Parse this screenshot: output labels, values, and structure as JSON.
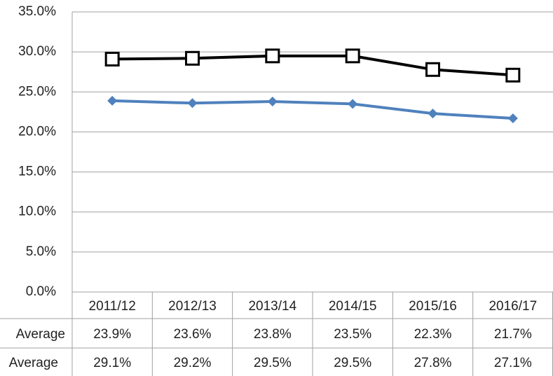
{
  "chart_data": {
    "type": "line",
    "categories": [
      "2011/12",
      "2012/13",
      "2013/14",
      "2014/15",
      "2015/16",
      "2016/17"
    ],
    "series": [
      {
        "name": "Average",
        "color": "#4f81bd",
        "marker": "diamond",
        "values": [
          23.9,
          23.6,
          23.8,
          23.5,
          22.3,
          21.7
        ],
        "value_labels": [
          "23.9%",
          "23.6%",
          "23.8%",
          "23.5%",
          "22.3%",
          "21.7%"
        ]
      },
      {
        "name": "Average",
        "color": "#000000",
        "marker": "square",
        "values": [
          29.1,
          29.2,
          29.5,
          29.5,
          27.8,
          27.1
        ],
        "value_labels": [
          "29.1%",
          "29.2%",
          "29.5%",
          "29.5%",
          "27.8%",
          "27.1%"
        ]
      }
    ],
    "ylim": [
      0,
      35
    ],
    "yticks": [
      {
        "value": 0,
        "label": "0.0%"
      },
      {
        "value": 5,
        "label": "5.0%"
      },
      {
        "value": 10,
        "label": "10.0%"
      },
      {
        "value": 15,
        "label": "15.0%"
      },
      {
        "value": 20,
        "label": "20.0%"
      },
      {
        "value": 25,
        "label": "25.0%"
      },
      {
        "value": 30,
        "label": "30.0%"
      },
      {
        "value": 35,
        "label": "35.0%"
      }
    ],
    "grid": true,
    "data_table": true
  }
}
